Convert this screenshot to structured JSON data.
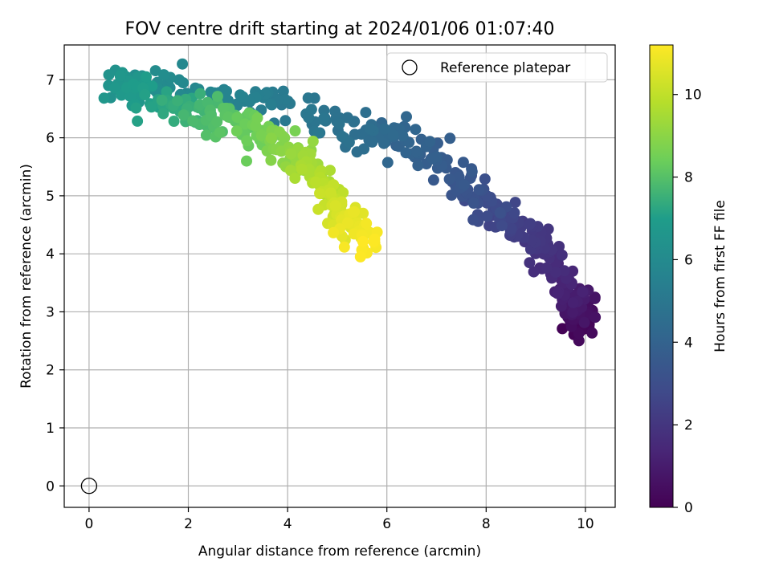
{
  "chart_data": {
    "type": "scatter",
    "title": "FOV centre drift starting at 2024/01/06 01:07:40",
    "xlabel": "Angular distance from reference (arcmin)",
    "ylabel": "Rotation from reference (arcmin)",
    "xlim": [
      -0.5,
      10.6
    ],
    "ylim": [
      -0.37,
      7.6
    ],
    "xticks": [
      0,
      2,
      4,
      6,
      8,
      10
    ],
    "yticks": [
      0,
      1,
      2,
      3,
      4,
      5,
      6,
      7
    ],
    "grid": true,
    "legend": {
      "position": "top-right",
      "entries": [
        "Reference platepar"
      ]
    },
    "reference_point": {
      "x": 0,
      "y": 0,
      "label": "Reference platepar"
    },
    "colorbar": {
      "label": "Hours from first FF file",
      "range": [
        0,
        11.2
      ],
      "ticks": [
        0,
        2,
        4,
        6,
        8,
        10
      ],
      "colormap": [
        "#440154",
        "#482777",
        "#3f4a8a",
        "#31678e",
        "#26838f",
        "#1f9d8a",
        "#6cce5a",
        "#b6de2b",
        "#fee825"
      ]
    },
    "track_keypoints": [
      {
        "t": 0.0,
        "x": 9.9,
        "y": 2.75
      },
      {
        "t": 0.6,
        "x": 9.95,
        "y": 3.0
      },
      {
        "t": 1.2,
        "x": 9.6,
        "y": 3.35
      },
      {
        "t": 1.7,
        "x": 9.3,
        "y": 3.9
      },
      {
        "t": 2.2,
        "x": 8.8,
        "y": 4.4
      },
      {
        "t": 2.8,
        "x": 8.2,
        "y": 4.75
      },
      {
        "t": 3.3,
        "x": 7.6,
        "y": 5.1
      },
      {
        "t": 3.8,
        "x": 6.9,
        "y": 5.75
      },
      {
        "t": 4.2,
        "x": 6.2,
        "y": 6.05
      },
      {
        "t": 4.7,
        "x": 5.2,
        "y": 6.15
      },
      {
        "t": 5.1,
        "x": 4.0,
        "y": 6.5
      },
      {
        "t": 5.5,
        "x": 3.1,
        "y": 6.7
      },
      {
        "t": 6.0,
        "x": 1.6,
        "y": 6.85
      },
      {
        "t": 6.4,
        "x": 0.6,
        "y": 6.9
      },
      {
        "t": 6.9,
        "x": 0.9,
        "y": 6.75
      },
      {
        "t": 7.3,
        "x": 1.8,
        "y": 6.55
      },
      {
        "t": 7.8,
        "x": 2.4,
        "y": 6.4
      },
      {
        "t": 8.3,
        "x": 3.2,
        "y": 6.2
      },
      {
        "t": 8.8,
        "x": 3.8,
        "y": 5.9
      },
      {
        "t": 9.3,
        "x": 4.3,
        "y": 5.55
      },
      {
        "t": 9.8,
        "x": 4.7,
        "y": 5.2
      },
      {
        "t": 10.3,
        "x": 5.0,
        "y": 4.8
      },
      {
        "t": 10.7,
        "x": 5.3,
        "y": 4.55
      },
      {
        "t": 11.2,
        "x": 5.6,
        "y": 4.1
      }
    ],
    "points_count": 700,
    "point_scatter_arcmin": {
      "x": 0.18,
      "y": 0.14
    }
  }
}
